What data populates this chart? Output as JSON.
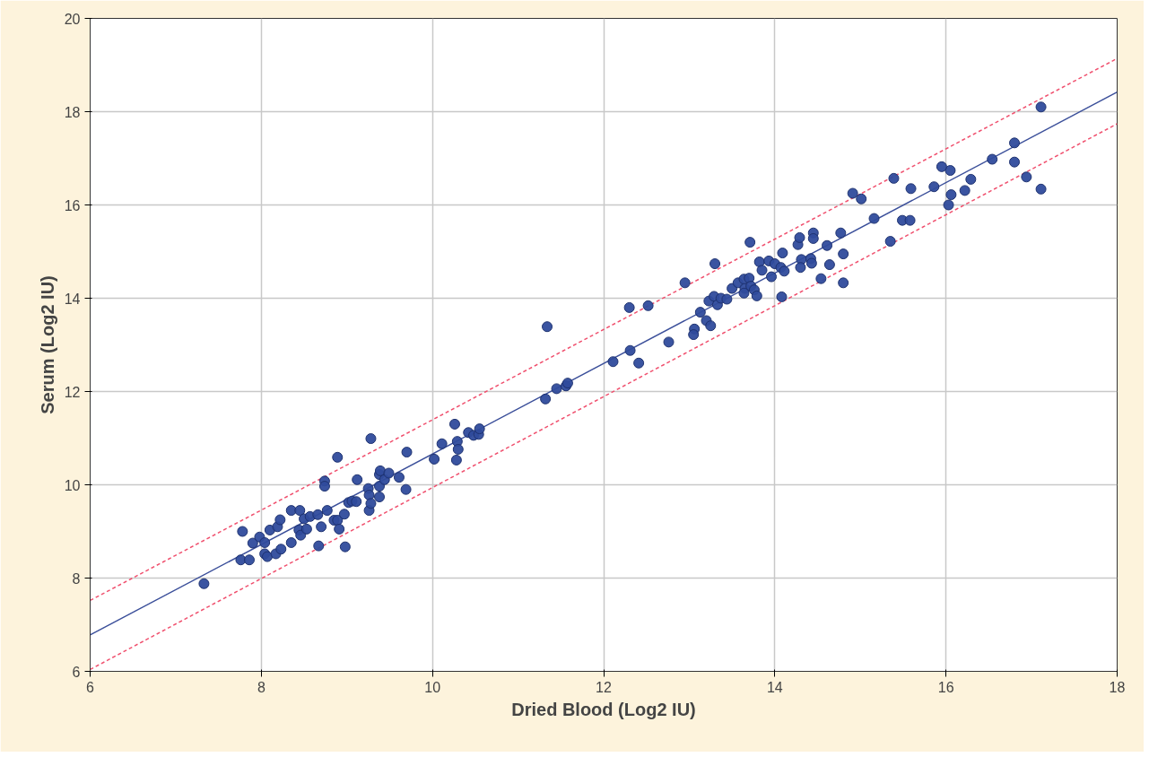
{
  "chart_data": {
    "type": "scatter",
    "xlabel": "Dried Blood (Log2 IU)",
    "ylabel": "Serum (Log2 IU)",
    "xlim": [
      6,
      18
    ],
    "ylim": [
      6,
      20
    ],
    "xticks": [
      6,
      8,
      10,
      12,
      14,
      16,
      18
    ],
    "yticks": [
      6,
      8,
      10,
      12,
      14,
      16,
      18,
      20
    ],
    "grid": true,
    "series": [
      {
        "marker": "circle",
        "color": "#2f4b9c",
        "x": [
          7.33,
          7.76,
          7.86,
          7.78,
          7.9,
          7.98,
          8.04,
          8.04,
          8.07,
          8.17,
          8.23,
          8.1,
          8.19,
          8.22,
          8.35,
          8.35,
          8.45,
          8.44,
          8.46,
          8.5,
          8.53,
          8.57,
          8.66,
          8.7,
          8.67,
          8.74,
          8.74,
          8.77,
          8.85,
          8.89,
          8.91,
          8.89,
          8.97,
          8.98,
          9.02,
          9.06,
          9.11,
          9.12,
          9.25,
          9.26,
          9.28,
          9.26,
          9.28,
          9.38,
          9.39,
          9.38,
          9.38,
          9.44,
          9.49,
          9.61,
          9.69,
          9.7,
          10.02,
          10.11,
          10.26,
          10.29,
          10.3,
          10.28,
          10.42,
          10.48,
          10.54,
          10.55,
          11.34,
          11.32,
          11.45,
          11.56,
          11.58,
          12.11,
          12.31,
          12.41,
          12.3,
          12.52,
          12.76,
          12.95,
          13.06,
          13.05,
          13.13,
          13.2,
          13.25,
          13.23,
          13.3,
          13.29,
          13.33,
          13.37,
          13.44,
          13.5,
          13.57,
          13.64,
          13.65,
          13.71,
          13.7,
          13.64,
          13.72,
          13.76,
          13.79,
          13.82,
          13.85,
          13.93,
          13.96,
          14.0,
          14.07,
          14.09,
          14.08,
          14.11,
          14.27,
          14.29,
          14.31,
          14.3,
          14.42,
          14.43,
          14.45,
          14.45,
          14.54,
          14.61,
          14.64,
          14.91,
          15.01,
          15.16,
          15.35,
          15.49,
          15.58,
          15.39,
          15.59,
          15.86,
          14.8,
          14.8,
          14.77,
          17.11,
          16.8,
          16.8,
          16.54,
          16.94,
          17.11,
          16.29,
          16.22,
          16.05,
          15.95,
          16.06,
          16.03
        ],
        "values": [
          7.88,
          8.39,
          8.39,
          9.0,
          8.75,
          8.88,
          8.76,
          8.52,
          8.46,
          8.52,
          8.62,
          9.03,
          9.1,
          9.25,
          8.76,
          9.45,
          9.45,
          9.03,
          8.92,
          9.27,
          9.05,
          9.32,
          9.36,
          9.1,
          8.69,
          10.08,
          9.97,
          9.45,
          9.24,
          9.24,
          9.05,
          10.59,
          9.37,
          8.67,
          9.62,
          9.65,
          9.64,
          10.11,
          9.92,
          9.78,
          10.99,
          9.45,
          9.6,
          10.22,
          10.3,
          9.74,
          9.97,
          10.11,
          10.25,
          10.16,
          9.9,
          10.7,
          10.55,
          10.88,
          11.3,
          10.93,
          10.76,
          10.53,
          11.12,
          11.06,
          11.08,
          11.2,
          13.39,
          11.84,
          12.06,
          12.12,
          12.18,
          12.64,
          12.88,
          12.61,
          13.8,
          13.84,
          13.06,
          14.33,
          13.34,
          13.22,
          13.7,
          13.52,
          13.41,
          13.94,
          14.74,
          14.04,
          13.86,
          14.0,
          13.98,
          14.21,
          14.33,
          14.41,
          14.21,
          15.2,
          14.43,
          14.11,
          14.26,
          14.18,
          14.05,
          14.78,
          14.6,
          14.8,
          14.46,
          14.74,
          14.66,
          14.97,
          14.03,
          14.58,
          15.15,
          15.3,
          14.83,
          14.66,
          14.85,
          14.75,
          15.4,
          15.28,
          14.42,
          15.13,
          14.72,
          16.25,
          16.13,
          15.71,
          15.22,
          15.67,
          15.67,
          16.57,
          16.35,
          16.39,
          14.33,
          14.95,
          15.4,
          18.1,
          17.33,
          16.92,
          16.98,
          16.6,
          16.34,
          16.55,
          16.31,
          16.74,
          16.82,
          16.22,
          16.0
        ]
      },
      {
        "type": "line",
        "line_style": "solid",
        "color": "#3b4f9a",
        "x": [
          6,
          18
        ],
        "values": [
          6.78,
          18.42
        ]
      },
      {
        "type": "line",
        "line_style": "dashed",
        "color": "#f0506e",
        "x": [
          6,
          18
        ],
        "values": [
          7.52,
          19.14
        ]
      },
      {
        "type": "line",
        "line_style": "dashed",
        "color": "#f0506e",
        "x": [
          6,
          18
        ],
        "values": [
          6.04,
          17.74
        ]
      }
    ]
  }
}
